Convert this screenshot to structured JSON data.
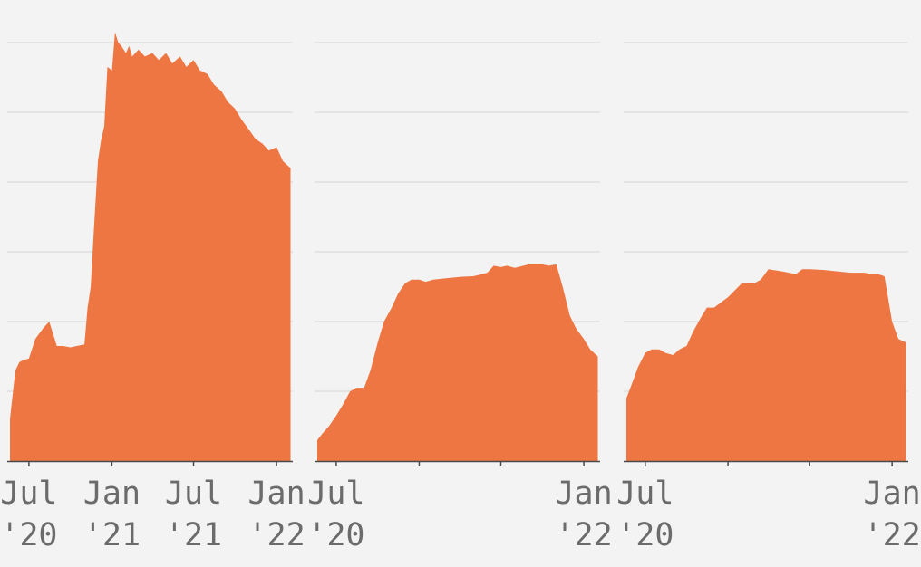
{
  "colors": {
    "background": "#f3f3f3",
    "area_fill": "#ee7642",
    "gridline": "#d4d4d4",
    "axis_line": "#4a4a4a",
    "tick_label": "#6b6b6b"
  },
  "chart_data": [
    {
      "type": "area",
      "grid": true,
      "x_axis_type": "date",
      "ylim": [
        0,
        6
      ],
      "x_domain": [
        "2020-05-14",
        "2022-02-06"
      ],
      "x_ticks": [
        {
          "date": "2020-07-01",
          "label": [
            "Jul",
            "'20"
          ]
        },
        {
          "date": "2021-01-01",
          "label": [
            "Jan",
            "'21"
          ]
        },
        {
          "date": "2021-07-01",
          "label": [
            "Jul",
            "'21"
          ]
        },
        {
          "date": "2022-01-01",
          "label": [
            "Jan",
            "'22"
          ]
        }
      ],
      "series": [
        {
          "x": [
            "2020-05-20",
            "2020-05-25",
            "2020-06-01",
            "2020-06-10",
            "2020-06-20",
            "2020-07-01",
            "2020-07-15",
            "2020-08-01",
            "2020-08-15",
            "2020-09-01",
            "2020-09-15",
            "2020-10-01",
            "2020-10-15",
            "2020-11-01",
            "2020-11-08",
            "2020-11-15",
            "2020-11-22",
            "2020-12-01",
            "2020-12-08",
            "2020-12-15",
            "2020-12-22",
            "2021-01-01",
            "2021-01-08",
            "2021-01-15",
            "2021-01-22",
            "2021-02-01",
            "2021-02-08",
            "2021-02-15",
            "2021-03-01",
            "2021-03-15",
            "2021-04-01",
            "2021-04-15",
            "2021-05-01",
            "2021-05-15",
            "2021-06-01",
            "2021-06-15",
            "2021-07-01",
            "2021-07-15",
            "2021-08-01",
            "2021-08-15",
            "2021-09-01",
            "2021-09-15",
            "2021-10-01",
            "2021-10-15",
            "2021-11-01",
            "2021-11-15",
            "2021-12-01",
            "2021-12-15",
            "2022-01-01",
            "2022-01-15",
            "2022-02-01"
          ],
          "values": [
            0.6,
            0.9,
            1.3,
            1.42,
            1.45,
            1.47,
            1.75,
            1.9,
            2.0,
            1.65,
            1.65,
            1.63,
            1.65,
            1.67,
            2.2,
            2.5,
            3.3,
            4.3,
            4.6,
            4.8,
            5.65,
            5.6,
            6.15,
            6.0,
            5.95,
            5.85,
            5.95,
            5.8,
            5.9,
            5.8,
            5.85,
            5.75,
            5.85,
            5.7,
            5.8,
            5.65,
            5.75,
            5.6,
            5.55,
            5.4,
            5.3,
            5.15,
            5.05,
            4.9,
            4.75,
            4.62,
            4.55,
            4.45,
            4.5,
            4.3,
            4.2
          ]
        }
      ]
    },
    {
      "type": "area",
      "grid": true,
      "x_axis_type": "date",
      "ylim": [
        0,
        6
      ],
      "x_domain": [
        "2020-05-14",
        "2022-02-06"
      ],
      "x_ticks": [
        {
          "date": "2020-07-01",
          "label": [
            "Jul",
            "'20"
          ]
        },
        {
          "date": "2021-01-01",
          "label": null
        },
        {
          "date": "2021-07-01",
          "label": null
        },
        {
          "date": "2022-01-01",
          "label": [
            "Jan",
            "'22"
          ]
        }
      ],
      "series": [
        {
          "x": [
            "2020-05-20",
            "2020-06-01",
            "2020-06-15",
            "2020-07-01",
            "2020-07-15",
            "2020-08-01",
            "2020-08-15",
            "2020-09-01",
            "2020-09-15",
            "2020-10-01",
            "2020-10-15",
            "2020-11-01",
            "2020-11-15",
            "2020-12-01",
            "2020-12-15",
            "2021-01-01",
            "2021-01-15",
            "2021-02-01",
            "2021-03-01",
            "2021-04-01",
            "2021-05-01",
            "2021-06-01",
            "2021-06-15",
            "2021-07-01",
            "2021-07-15",
            "2021-08-01",
            "2021-09-01",
            "2021-10-01",
            "2021-10-15",
            "2021-11-01",
            "2021-11-15",
            "2021-12-01",
            "2021-12-15",
            "2022-01-01",
            "2022-01-15",
            "2022-02-01"
          ],
          "values": [
            0.3,
            0.4,
            0.5,
            0.65,
            0.8,
            1.0,
            1.05,
            1.05,
            1.3,
            1.7,
            2.0,
            2.2,
            2.4,
            2.55,
            2.6,
            2.6,
            2.57,
            2.6,
            2.62,
            2.64,
            2.65,
            2.7,
            2.8,
            2.78,
            2.8,
            2.77,
            2.82,
            2.82,
            2.8,
            2.82,
            2.5,
            2.08,
            1.9,
            1.75,
            1.6,
            1.5
          ]
        }
      ]
    },
    {
      "type": "area",
      "grid": true,
      "x_axis_type": "date",
      "ylim": [
        0,
        6
      ],
      "x_domain": [
        "2020-05-14",
        "2022-02-06"
      ],
      "x_ticks": [
        {
          "date": "2020-07-01",
          "label": [
            "Jul",
            "'20"
          ]
        },
        {
          "date": "2021-01-01",
          "label": null
        },
        {
          "date": "2021-07-01",
          "label": null
        },
        {
          "date": "2022-01-01",
          "label": [
            "Jan",
            "'22"
          ]
        }
      ],
      "series": [
        {
          "x": [
            "2020-05-20",
            "2020-06-01",
            "2020-06-15",
            "2020-07-01",
            "2020-07-15",
            "2020-08-01",
            "2020-08-15",
            "2020-09-01",
            "2020-09-15",
            "2020-10-01",
            "2020-10-15",
            "2020-11-01",
            "2020-11-15",
            "2020-12-01",
            "2021-01-01",
            "2021-02-01",
            "2021-03-01",
            "2021-03-15",
            "2021-04-01",
            "2021-05-01",
            "2021-06-01",
            "2021-06-15",
            "2021-07-01",
            "2021-08-01",
            "2021-09-01",
            "2021-10-01",
            "2021-11-01",
            "2021-11-15",
            "2021-12-01",
            "2021-12-15",
            "2022-01-01",
            "2022-01-15",
            "2022-02-01"
          ],
          "values": [
            0.9,
            1.1,
            1.35,
            1.55,
            1.6,
            1.6,
            1.55,
            1.52,
            1.6,
            1.65,
            1.85,
            2.05,
            2.2,
            2.2,
            2.35,
            2.55,
            2.55,
            2.6,
            2.75,
            2.72,
            2.68,
            2.75,
            2.75,
            2.74,
            2.72,
            2.7,
            2.7,
            2.68,
            2.68,
            2.65,
            2.0,
            1.75,
            1.7
          ]
        }
      ]
    }
  ]
}
